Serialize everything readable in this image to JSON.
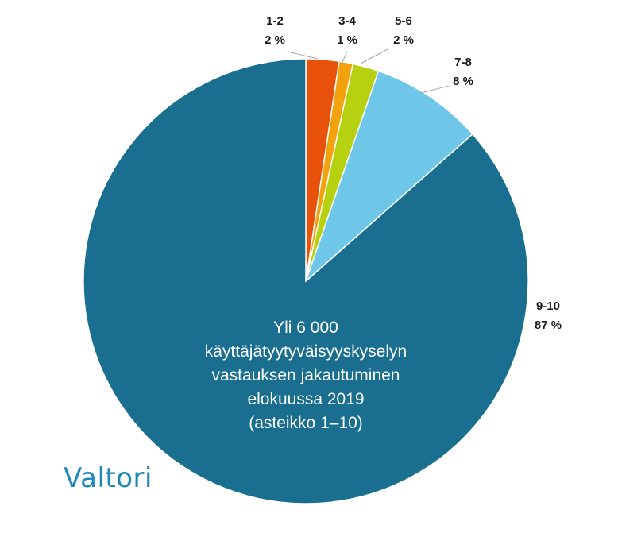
{
  "chart_data": {
    "type": "pie",
    "slices": [
      {
        "label": "1-2",
        "value_label": "2 %",
        "value": 2.4,
        "color": "#e8520a"
      },
      {
        "label": "3-4",
        "value_label": "1 %",
        "value": 1.0,
        "color": "#f2a20d"
      },
      {
        "label": "5-6",
        "value_label": "2 %",
        "value": 1.9,
        "color": "#b5d10f"
      },
      {
        "label": "7-8",
        "value_label": "8 %",
        "value": 8.2,
        "color": "#6ec6e8"
      },
      {
        "label": "9-10",
        "value_label": "87 %",
        "value": 86.5,
        "color": "#1a6e8f"
      }
    ],
    "center_text": [
      "Yli 6 000",
      "käyttäjätyytyväisyyskyselyn",
      "vastauksen jakautuminen",
      "elokuussa 2019",
      "(asteikko 1–10)"
    ]
  },
  "logo": {
    "text": "Valtori",
    "color": "#1e88b8"
  }
}
